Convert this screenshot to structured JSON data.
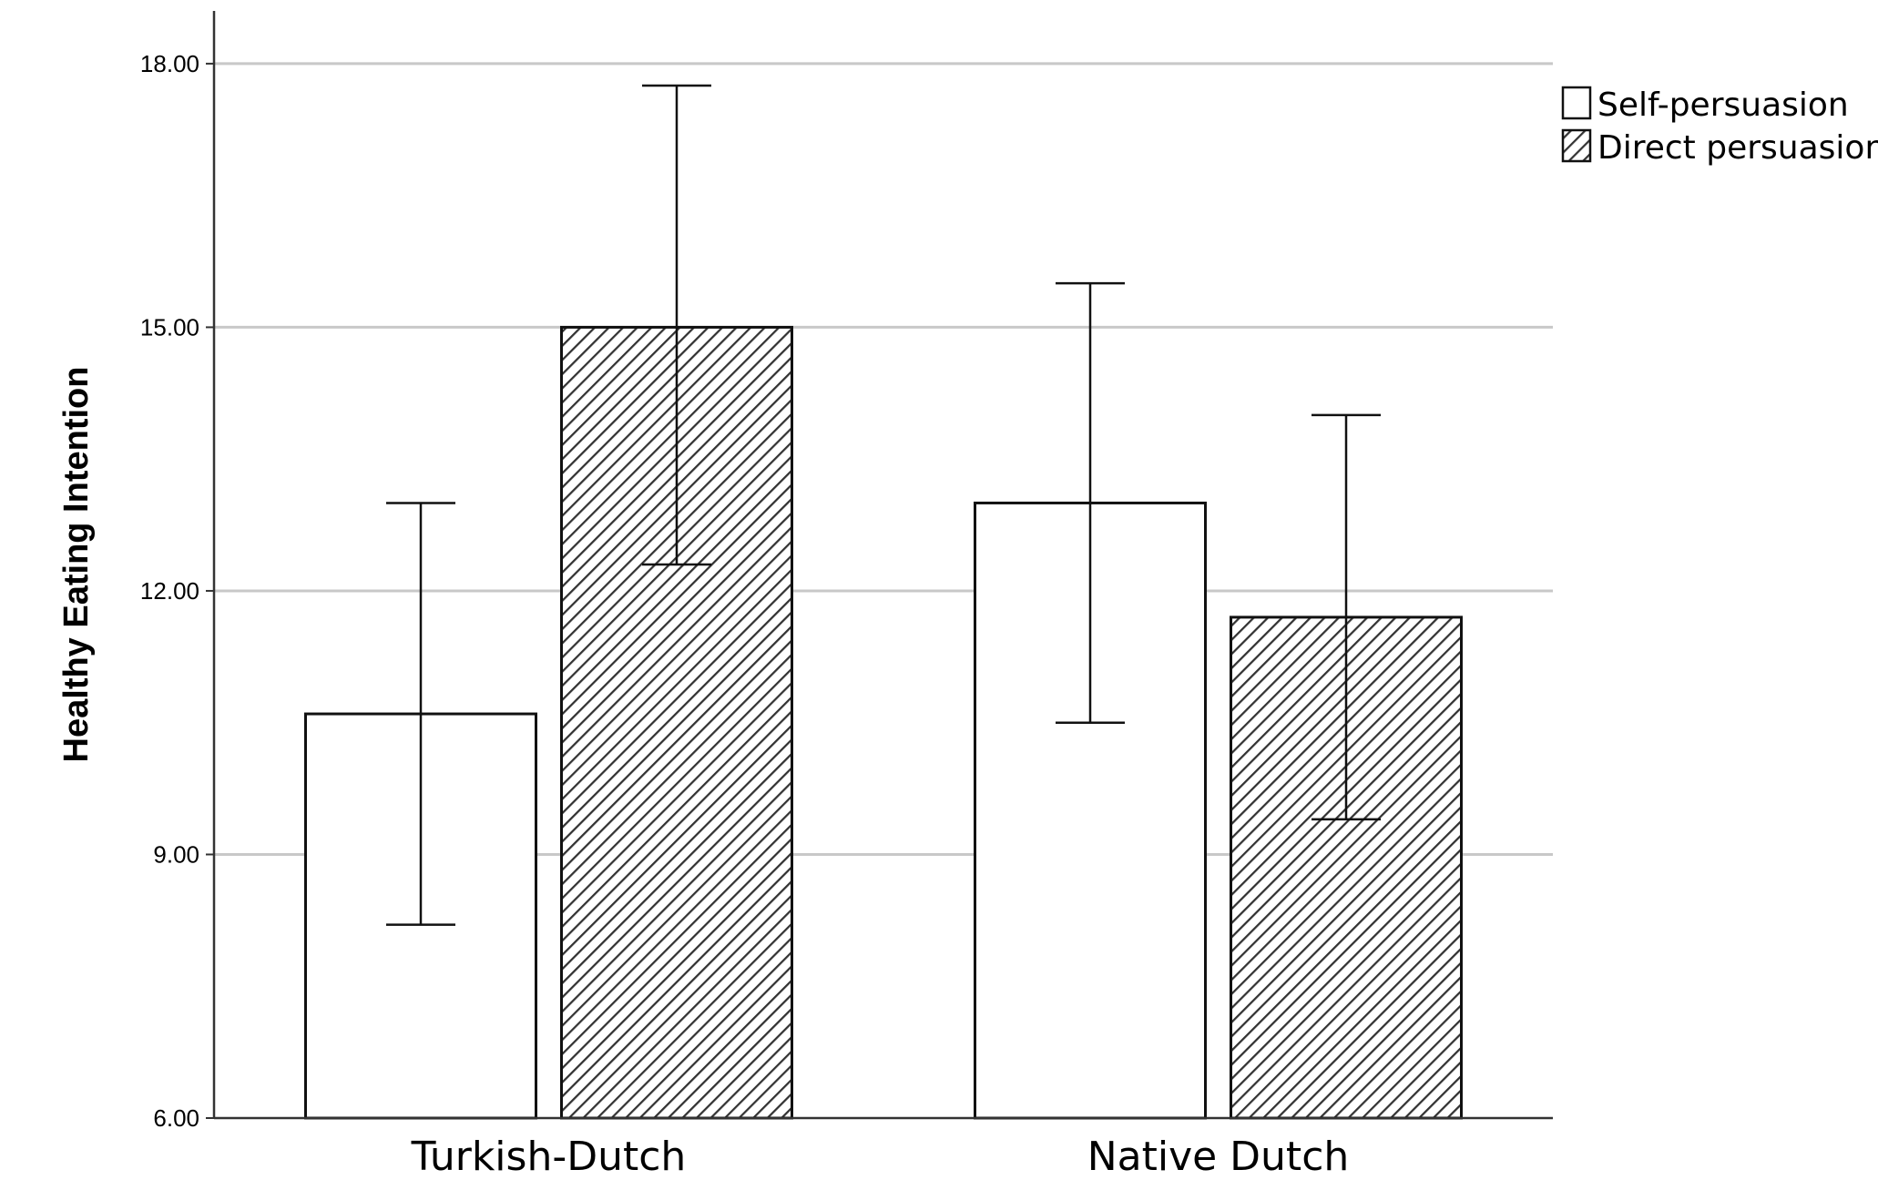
{
  "chart_data": {
    "type": "bar",
    "title": "",
    "xlabel": "",
    "ylabel": "Healthy Eating Intention",
    "categories": [
      "Turkish-Dutch",
      "Native Dutch"
    ],
    "ylim": [
      6,
      18.6
    ],
    "yticks": [
      6,
      9,
      12,
      15,
      18
    ],
    "ytick_labels": [
      "6.00",
      "9.00",
      "12.00",
      "15.00",
      "18.00"
    ],
    "grid": true,
    "legend_position": "top-right",
    "series": [
      {
        "name": "Self-persuasion",
        "fill": "plain",
        "values": [
          10.6,
          13.0
        ],
        "error_low": [
          8.2,
          10.5
        ],
        "error_high": [
          13.0,
          15.5
        ]
      },
      {
        "name": "Direct persuasion",
        "fill": "hatched",
        "values": [
          15.0,
          11.7
        ],
        "error_low": [
          12.3,
          9.4
        ],
        "error_high": [
          17.75,
          14.0
        ]
      }
    ],
    "colors": {
      "bar_fill": "#ffffff",
      "bar_stroke": "#111111",
      "hatch": "#333333",
      "grid": "#c8c8c8",
      "axis": "#333333"
    }
  }
}
